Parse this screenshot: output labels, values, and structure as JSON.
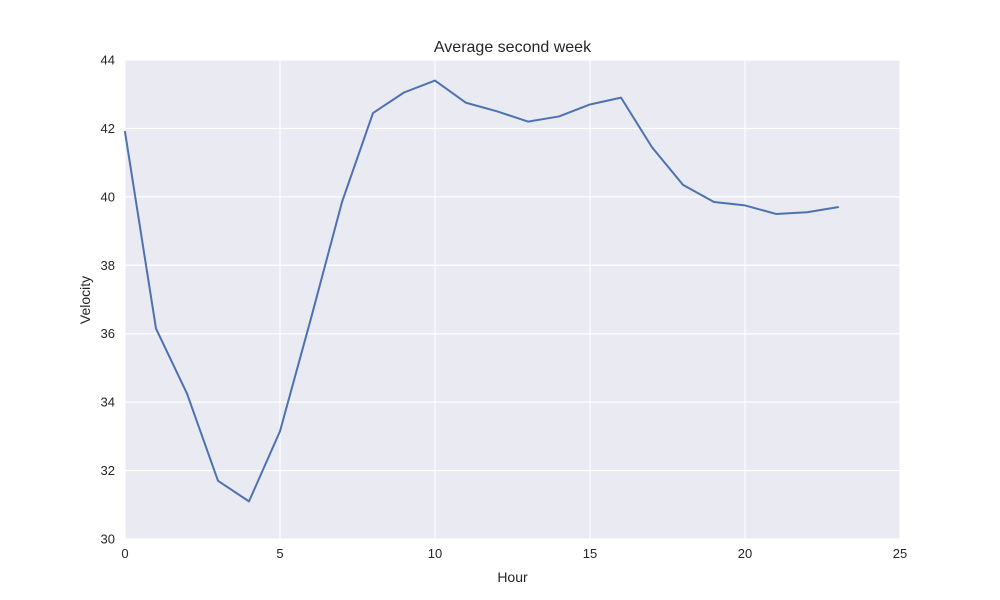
{
  "chart_data": {
    "type": "line",
    "title": "Average second week",
    "xlabel": "Hour",
    "ylabel": "Velocity",
    "xlim": [
      0,
      25
    ],
    "ylim": [
      30,
      44
    ],
    "xticks": [
      0,
      5,
      10,
      15,
      20,
      25
    ],
    "yticks": [
      30,
      32,
      34,
      36,
      38,
      40,
      42,
      44
    ],
    "grid": true,
    "colors": {
      "plot_background": "#eaeaf2",
      "grid": "#ffffff",
      "line": "#4c72b0"
    },
    "series": [
      {
        "x": [
          0,
          1,
          2,
          3,
          4,
          5,
          6,
          7,
          8,
          9,
          10,
          11,
          12,
          13,
          14,
          15,
          16,
          17,
          18,
          19,
          20,
          21,
          22,
          23
        ],
        "values": [
          41.9,
          36.15,
          34.25,
          31.7,
          31.1,
          33.15,
          36.45,
          39.85,
          42.45,
          43.05,
          43.4,
          42.75,
          42.5,
          42.2,
          42.35,
          42.7,
          42.9,
          41.45,
          40.35,
          39.85,
          39.75,
          39.5,
          39.55,
          39.7
        ]
      }
    ]
  }
}
